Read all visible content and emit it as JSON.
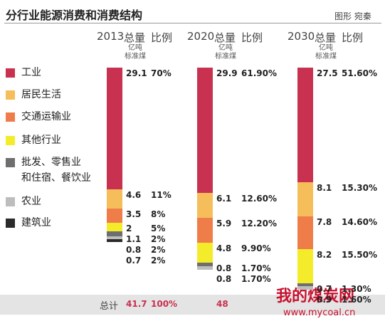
{
  "title": "分行业能源消费和消费结构",
  "credit": "图形 宛秦",
  "watermark": "我的煤炭网",
  "watermark_url": "www.mycoal.cn",
  "chart_data": {
    "type": "stacked-bar",
    "categories": [
      "2013",
      "2020",
      "2030"
    ],
    "total_header": "总量",
    "share_header": "比例",
    "unit": "亿吨\n标准煤",
    "series": [
      {
        "name": "工业",
        "color": "#c8314f",
        "values": [
          29.1,
          29.9,
          27.5
        ],
        "share_labels": [
          "70%",
          "61.90%",
          "51.60%"
        ]
      },
      {
        "name": "居民生活",
        "color": "#f5be5a",
        "values": [
          4.6,
          6.1,
          8.1
        ],
        "share_labels": [
          "11%",
          "12.60%",
          "15.30%"
        ]
      },
      {
        "name": "交通运输业",
        "color": "#ef7d4a",
        "values": [
          3.5,
          5.9,
          7.8
        ],
        "share_labels": [
          "8%",
          "12.20%",
          "14.60%"
        ]
      },
      {
        "name": "其他行业",
        "color": "#f4ec2a",
        "values": [
          2,
          4.8,
          8.2
        ],
        "share_labels": [
          "5%",
          "9.90%",
          "15.50%"
        ]
      },
      {
        "name": "批发、零售业\n和住宿、餐饮业",
        "color": "#6e6e6e",
        "values": [
          1.1,
          0.8,
          0.7
        ],
        "share_labels": [
          "2%",
          "1.70%",
          "1.30%"
        ]
      },
      {
        "name": "农业",
        "color": "#bdbdbd",
        "values": [
          0.8,
          0.8,
          0.9
        ],
        "share_labels": [
          "2%",
          "1.70%",
          "1.60%"
        ]
      },
      {
        "name": "建筑业",
        "color": "#2a2a2a",
        "values": [
          0.7,
          null,
          null
        ],
        "share_labels": [
          "2%",
          null,
          null
        ]
      }
    ],
    "total_label": "总计",
    "totals": [
      41.7,
      48,
      null
    ],
    "total_share_labels": [
      "100%",
      null,
      null
    ]
  }
}
